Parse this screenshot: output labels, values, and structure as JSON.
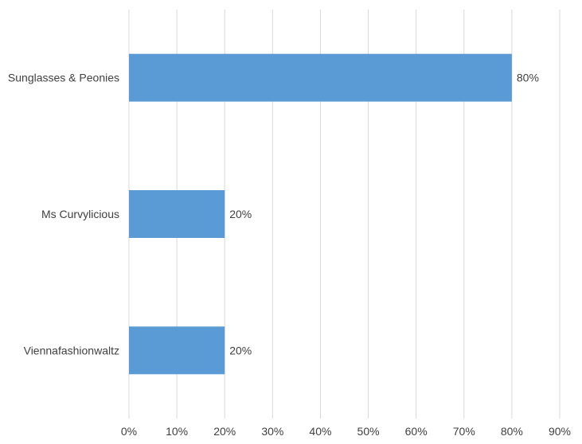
{
  "chart_data": {
    "type": "bar",
    "orientation": "horizontal",
    "categories": [
      "Sunglasses & Peonies",
      "Ms Curvylicious",
      "Viennafashionwaltz"
    ],
    "values": [
      80,
      20,
      20
    ],
    "data_labels": [
      "80%",
      "20%",
      "20%"
    ],
    "x_ticks": [
      0,
      10,
      20,
      30,
      40,
      50,
      60,
      70,
      80,
      90
    ],
    "x_tick_labels": [
      "0%",
      "10%",
      "20%",
      "30%",
      "40%",
      "50%",
      "60%",
      "70%",
      "80%",
      "90%"
    ],
    "xlim": [
      0,
      90
    ],
    "grid": "vertical",
    "legend": "none",
    "bar_color": "#5b9bd5",
    "gridline_color": "#d9d9d9",
    "text_color": "#404040"
  }
}
